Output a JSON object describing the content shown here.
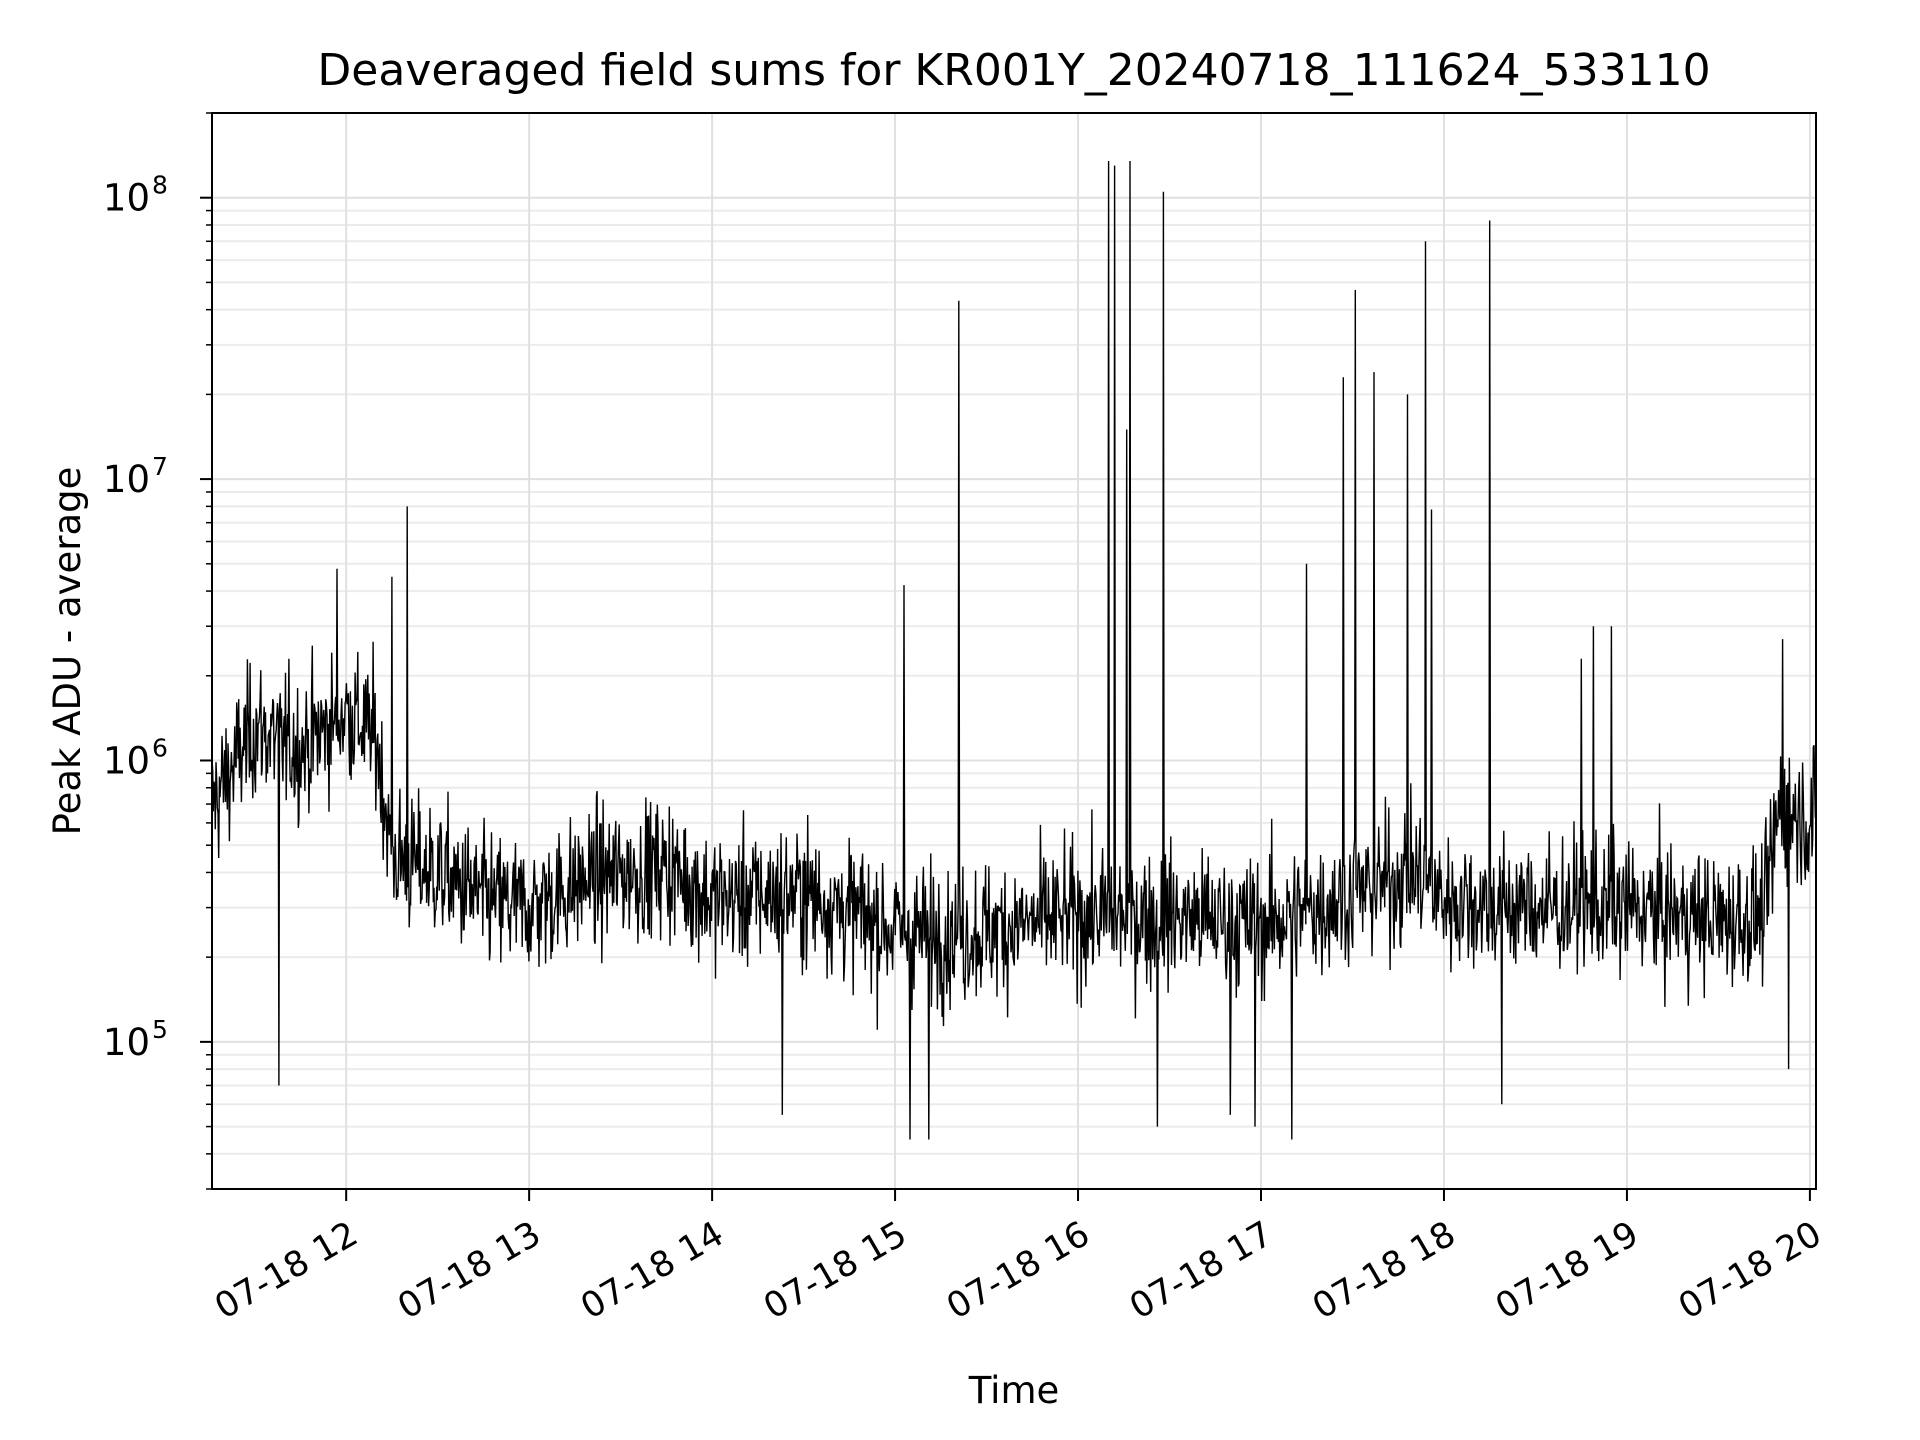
{
  "chart_data": {
    "type": "line",
    "title": "Deaveraged field sums for KR001Y_20240718_111624_533110",
    "xlabel": "Time",
    "ylabel": "Peak ADU - average",
    "yscale": "log",
    "grid": true,
    "x_tick_labels": [
      "07-18 12",
      "07-18 13",
      "07-18 14",
      "07-18 15",
      "07-18 16",
      "07-18 17",
      "07-18 18",
      "07-18 19",
      "07-18 20"
    ],
    "x_ticks": [
      "2024-07-18T12:00",
      "2024-07-18T13:00",
      "2024-07-18T14:00",
      "2024-07-18T15:00",
      "2024-07-18T16:00",
      "2024-07-18T17:00",
      "2024-07-18T18:00",
      "2024-07-18T19:00",
      "2024-07-18T20:00"
    ],
    "xlim": [
      "2024-07-18T11:16",
      "2024-07-18T20:02"
    ],
    "y_tick_labels": [
      {
        "base": "10",
        "exp": "5"
      },
      {
        "base": "10",
        "exp": "6"
      },
      {
        "base": "10",
        "exp": "7"
      },
      {
        "base": "10",
        "exp": "8"
      }
    ],
    "ylim": [
      30000,
      200000000
    ],
    "line_color": "#000000",
    "series": [
      {
        "baseline": [
          [
            "2024-07-18T11:16",
            700000
          ],
          [
            "2024-07-18T11:30",
            1300000
          ],
          [
            "2024-07-18T11:45",
            1100000
          ],
          [
            "2024-07-18T12:00",
            1500000
          ],
          [
            "2024-07-18T12:10",
            1200000
          ],
          [
            "2024-07-18T12:15",
            450000
          ],
          [
            "2024-07-18T12:30",
            400000
          ],
          [
            "2024-07-18T12:45",
            320000
          ],
          [
            "2024-07-18T13:00",
            300000
          ],
          [
            "2024-07-18T13:20",
            380000
          ],
          [
            "2024-07-18T13:45",
            420000
          ],
          [
            "2024-07-18T14:00",
            320000
          ],
          [
            "2024-07-18T14:30",
            340000
          ],
          [
            "2024-07-18T15:00",
            250000
          ],
          [
            "2024-07-18T15:20",
            240000
          ],
          [
            "2024-07-18T15:40",
            260000
          ],
          [
            "2024-07-18T16:00",
            280000
          ],
          [
            "2024-07-18T16:30",
            280000
          ],
          [
            "2024-07-18T17:00",
            260000
          ],
          [
            "2024-07-18T17:30",
            330000
          ],
          [
            "2024-07-18T17:50",
            400000
          ],
          [
            "2024-07-18T18:00",
            320000
          ],
          [
            "2024-07-18T18:30",
            300000
          ],
          [
            "2024-07-18T19:00",
            300000
          ],
          [
            "2024-07-18T19:30",
            270000
          ],
          [
            "2024-07-18T19:45",
            280000
          ],
          [
            "2024-07-18T19:50",
            700000
          ],
          [
            "2024-07-18T20:02",
            600000
          ]
        ],
        "spikes": [
          [
            "2024-07-18T11:57",
            4800000
          ],
          [
            "2024-07-18T12:15",
            4500000
          ],
          [
            "2024-07-18T12:20",
            8000000
          ],
          [
            "2024-07-18T15:03",
            4200000
          ],
          [
            "2024-07-18T15:21",
            43000000
          ],
          [
            "2024-07-18T16:10",
            135000000
          ],
          [
            "2024-07-18T16:12",
            130000000
          ],
          [
            "2024-07-18T16:16",
            15000000
          ],
          [
            "2024-07-18T16:17",
            135000000
          ],
          [
            "2024-07-18T16:28",
            105000000
          ],
          [
            "2024-07-18T17:15",
            5000000
          ],
          [
            "2024-07-18T17:27",
            23000000
          ],
          [
            "2024-07-18T17:31",
            47000000
          ],
          [
            "2024-07-18T17:37",
            24000000
          ],
          [
            "2024-07-18T17:48",
            20000000
          ],
          [
            "2024-07-18T17:54",
            70000000
          ],
          [
            "2024-07-18T17:56",
            7800000
          ],
          [
            "2024-07-18T18:15",
            83000000
          ],
          [
            "2024-07-18T18:45",
            2300000
          ],
          [
            "2024-07-18T18:49",
            3000000
          ],
          [
            "2024-07-18T18:55",
            3000000
          ],
          [
            "2024-07-18T19:51",
            2700000
          ]
        ],
        "dips": [
          [
            "2024-07-18T11:38",
            70000
          ],
          [
            "2024-07-18T14:23",
            55000
          ],
          [
            "2024-07-18T15:05",
            45000
          ],
          [
            "2024-07-18T15:11",
            45000
          ],
          [
            "2024-07-18T16:26",
            50000
          ],
          [
            "2024-07-18T16:50",
            55000
          ],
          [
            "2024-07-18T16:58",
            50000
          ],
          [
            "2024-07-18T17:10",
            45000
          ],
          [
            "2024-07-18T18:19",
            60000
          ],
          [
            "2024-07-18T19:53",
            80000
          ]
        ]
      }
    ]
  }
}
